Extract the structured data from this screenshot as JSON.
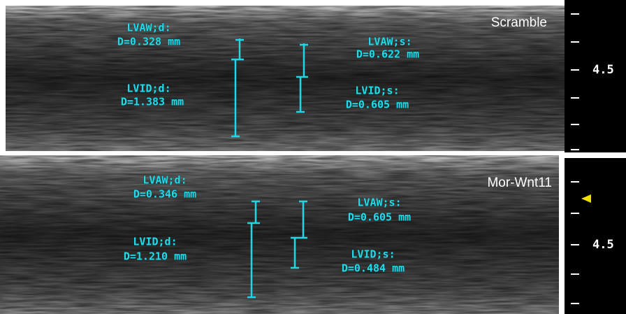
{
  "panels": [
    {
      "label": "Scramble",
      "scale_label": "4.5",
      "measurements": [
        {
          "name": "LVAW;d:",
          "value": "D=0.328 mm"
        },
        {
          "name": "LVID;d:",
          "value": "D=1.383 mm"
        },
        {
          "name": "LVAW;s:",
          "value": "D=0.622 mm"
        },
        {
          "name": "LVID;s:",
          "value": "D=0.605 mm"
        }
      ]
    },
    {
      "label": "Mor-Wnt11",
      "scale_label": "4.5",
      "measurements": [
        {
          "name": "LVAW;d:",
          "value": "D=0.346 mm"
        },
        {
          "name": "LVID;d:",
          "value": "D=1.210 mm"
        },
        {
          "name": "LVAW;s:",
          "value": "D=0.605 mm"
        },
        {
          "name": "LVID;s:",
          "value": "D=0.484 mm"
        }
      ]
    }
  ]
}
